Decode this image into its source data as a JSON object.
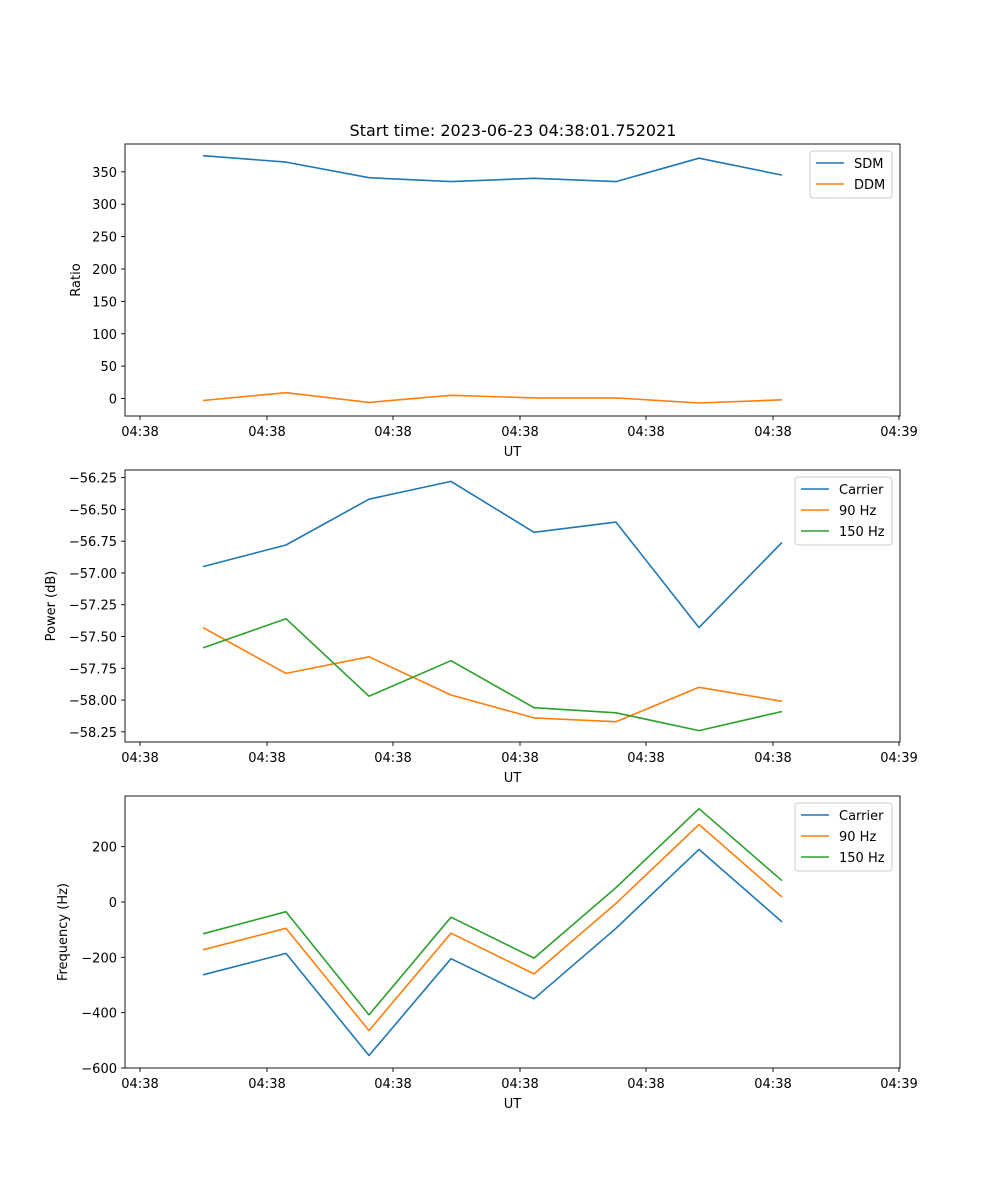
{
  "figure": {
    "title": "Start time: 2023-06-23 04:38:01.752021"
  },
  "colors": {
    "blue": "#1f77b4",
    "orange": "#ff7f0e",
    "green": "#2ca02c"
  },
  "chart_data": [
    {
      "type": "line",
      "title": "Start time: 2023-06-23 04:38:01.752021",
      "xlabel": "UT",
      "ylabel": "Ratio",
      "x_ticks": [
        "04:38",
        "04:38",
        "04:38",
        "04:38",
        "04:38",
        "04:38",
        "04:39"
      ],
      "y_ticks": [
        0,
        50,
        100,
        150,
        200,
        250,
        300,
        350
      ],
      "ylim": [
        -27,
        393
      ],
      "grid": false,
      "legend": "upper right",
      "series": [
        {
          "name": "SDM",
          "color": "#1f77b4",
          "values": [
            375,
            365,
            341,
            335,
            340,
            335,
            371,
            345
          ]
        },
        {
          "name": "DDM",
          "color": "#ff7f0e",
          "values": [
            -3,
            9,
            -6,
            5,
            1,
            1,
            -7,
            -2
          ]
        }
      ]
    },
    {
      "type": "line",
      "xlabel": "UT",
      "ylabel": "Power (dB)",
      "x_ticks": [
        "04:38",
        "04:38",
        "04:38",
        "04:38",
        "04:38",
        "04:38",
        "04:39"
      ],
      "y_ticks": [
        "−56.25",
        "−56.50",
        "−56.75",
        "−57.00",
        "−57.25",
        "−57.50",
        "−57.75",
        "−58.00",
        "−58.25"
      ],
      "y_tick_values": [
        -56.25,
        -56.5,
        -56.75,
        -57.0,
        -57.25,
        -57.5,
        -57.75,
        -58.0,
        -58.25
      ],
      "ylim": [
        -58.33,
        -56.19
      ],
      "grid": false,
      "legend": "upper right",
      "series": [
        {
          "name": "Carrier",
          "color": "#1f77b4",
          "values": [
            -56.95,
            -56.78,
            -56.42,
            -56.28,
            -56.68,
            -56.6,
            -57.43,
            -56.76
          ]
        },
        {
          "name": "90 Hz",
          "color": "#ff7f0e",
          "values": [
            -57.43,
            -57.79,
            -57.66,
            -57.96,
            -58.14,
            -58.17,
            -57.9,
            -58.01
          ]
        },
        {
          "name": "150 Hz",
          "color": "#2ca02c",
          "values": [
            -57.59,
            -57.36,
            -57.97,
            -57.69,
            -58.06,
            -58.1,
            -58.24,
            -58.09
          ]
        }
      ]
    },
    {
      "type": "line",
      "xlabel": "UT",
      "ylabel": "Frequency (Hz)",
      "x_ticks": [
        "04:38",
        "04:38",
        "04:38",
        "04:38",
        "04:38",
        "04:38",
        "04:39"
      ],
      "y_ticks": [
        "−600",
        "−400",
        "−200",
        "0",
        "200"
      ],
      "y_tick_values": [
        -600,
        -400,
        -200,
        0,
        200
      ],
      "ylim": [
        -600,
        383
      ],
      "grid": false,
      "legend": "upper right",
      "series": [
        {
          "name": "Carrier",
          "color": "#1f77b4",
          "values": [
            -263,
            -186,
            -555,
            -205,
            -350,
            -95,
            190,
            -72
          ]
        },
        {
          "name": "90 Hz",
          "color": "#ff7f0e",
          "values": [
            -173,
            -95,
            -465,
            -113,
            -260,
            -5,
            280,
            18
          ]
        },
        {
          "name": "150 Hz",
          "color": "#2ca02c",
          "values": [
            -115,
            -35,
            -408,
            -55,
            -203,
            52,
            337,
            77
          ]
        }
      ]
    }
  ]
}
